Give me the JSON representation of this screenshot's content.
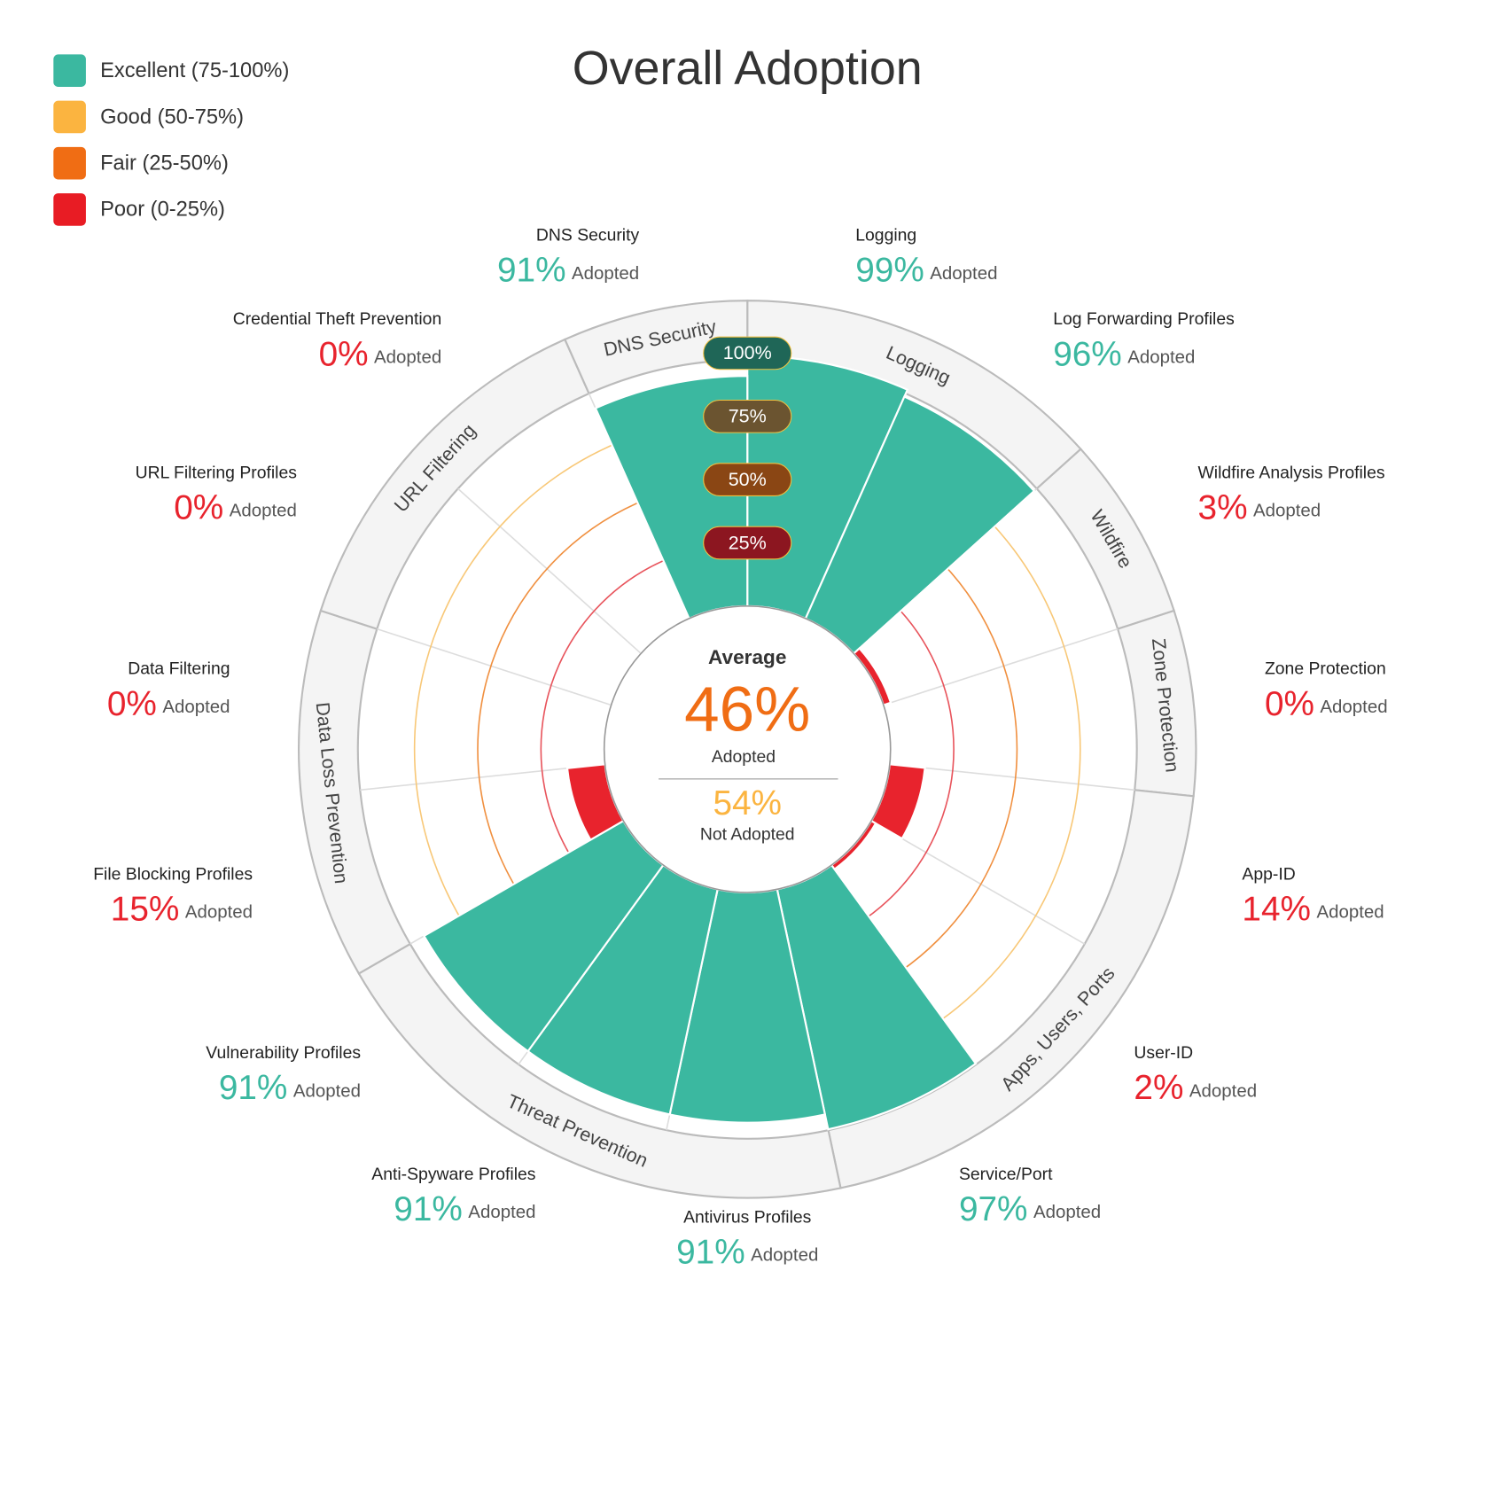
{
  "chart_data": {
    "type": "polar-bar",
    "title": "Overall Adoption",
    "legend": [
      {
        "label": "Excellent (75-100%)",
        "color": "#3bb8a0"
      },
      {
        "label": "Good (50-75%)",
        "color": "#fbb440"
      },
      {
        "label": "Fair (25-50%)",
        "color": "#f06d14"
      },
      {
        "label": "Poor (0-25%)",
        "color": "#e81c24"
      }
    ],
    "categories": [
      "Logging",
      "Log Forwarding Profiles",
      "Wildfire Analysis Profiles",
      "Zone Protection",
      "App-ID",
      "User-ID",
      "Service/Port",
      "Antivirus Profiles",
      "Anti-Spyware Profiles",
      "Vulnerability Profiles",
      "File Blocking Profiles",
      "Data Filtering",
      "URL Filtering Profiles",
      "Credential Theft Prevention",
      "DNS Security"
    ],
    "values": [
      99,
      96,
      3,
      0,
      14,
      2,
      97,
      91,
      91,
      91,
      15,
      0,
      0,
      0,
      91
    ],
    "value_labels": [
      "99%",
      "96%",
      "3%",
      "0%",
      "14%",
      "2%",
      "97%",
      "91%",
      "91%",
      "91%",
      "15%",
      "0%",
      "0%",
      "0%",
      "91%"
    ],
    "colors": [
      "#3bb8a0",
      "#3bb8a0",
      "#e8232d",
      "#e8232d",
      "#e8232d",
      "#e8232d",
      "#3bb8a0",
      "#3bb8a0",
      "#3bb8a0",
      "#3bb8a0",
      "#e8232d",
      "#e8232d",
      "#e8232d",
      "#e8232d",
      "#3bb8a0"
    ],
    "value_suffix": "Adopted",
    "groups": [
      {
        "name": "Logging",
        "members": [
          "Logging",
          "Log Forwarding Profiles"
        ]
      },
      {
        "name": "Wildfire",
        "members": [
          "Wildfire Analysis Profiles"
        ]
      },
      {
        "name": "Zone Protection",
        "members": [
          "Zone Protection"
        ]
      },
      {
        "name": "Apps, Users, Ports",
        "members": [
          "App-ID",
          "User-ID",
          "Service/Port"
        ]
      },
      {
        "name": "Threat Prevention",
        "members": [
          "Antivirus Profiles",
          "Anti-Spyware Profiles",
          "Vulnerability Profiles"
        ]
      },
      {
        "name": "Data Loss Prevention",
        "members": [
          "File Blocking Profiles",
          "Data Filtering"
        ]
      },
      {
        "name": "URL Filtering",
        "members": [
          "URL Filtering Profiles",
          "Credential Theft Prevention"
        ]
      },
      {
        "name": "DNS Security",
        "members": [
          "DNS Security"
        ]
      }
    ],
    "rlim": [
      0,
      100
    ],
    "rticks": [
      {
        "value": 25,
        "label": "25%"
      },
      {
        "value": 50,
        "label": "50%"
      },
      {
        "value": 75,
        "label": "75%"
      },
      {
        "value": 100,
        "label": "100%"
      }
    ],
    "rtick_colors": [
      "#8c1620",
      "#8a4614",
      "#6b5430",
      "#1f6657"
    ],
    "rring_colors": [
      "#e8545c",
      "#f09040",
      "#f8c878",
      null
    ],
    "center": {
      "title": "Average",
      "adopted": {
        "value": 46,
        "label": "46%"
      },
      "adopted_text": "Adopted",
      "not_adopted": {
        "value": 54,
        "label": "54%"
      },
      "not_adopted_text": "Not Adopted"
    }
  }
}
